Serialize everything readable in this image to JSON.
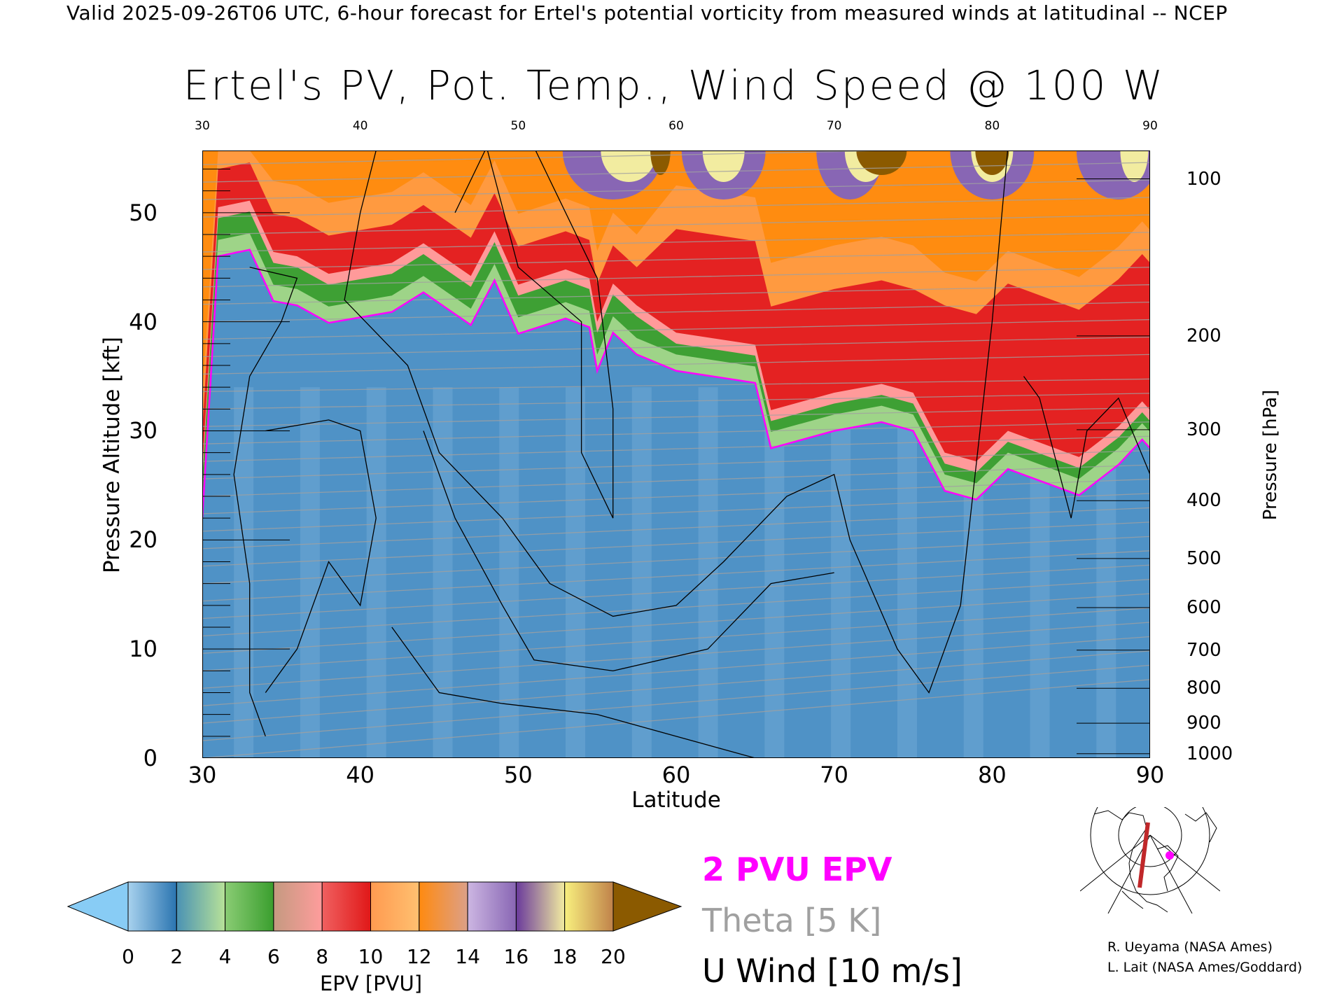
{
  "header": {
    "top_title": "Valid 2025-09-26T06 UTC, 6-hour forecast for Ertel's potential vorticity from measured winds at latitudinal -- NCEP",
    "main_title": "Ertel's PV, Pot. Temp., Wind Speed @ 100 W"
  },
  "chart_data": {
    "type": "heatmap",
    "title": "Ertel's PV, Pot. Temp., Wind Speed @ 100 W",
    "xlabel": "Latitude",
    "ylabel": "Pressure Altitude [kft]",
    "y2label": "Pressure [hPa]",
    "xlim": [
      30,
      90
    ],
    "ylim": [
      0,
      55.7
    ],
    "x_ticks": [
      "30",
      "40",
      "50",
      "60",
      "70",
      "80",
      "90"
    ],
    "x_tick_values": [
      30,
      40,
      50,
      60,
      70,
      80,
      90
    ],
    "y_ticks": [
      "0",
      "10",
      "20",
      "30",
      "40",
      "50"
    ],
    "y_tick_values": [
      0,
      10,
      20,
      30,
      40,
      50
    ],
    "pressure_ticks": [
      {
        "label": "100",
        "kft": 53.1
      },
      {
        "label": "200",
        "kft": 38.7
      },
      {
        "label": "300",
        "kft": 30.1
      },
      {
        "label": "400",
        "kft": 23.6
      },
      {
        "label": "500",
        "kft": 18.3
      },
      {
        "label": "600",
        "kft": 13.8
      },
      {
        "label": "700",
        "kft": 9.9
      },
      {
        "label": "800",
        "kft": 6.4
      },
      {
        "label": "900",
        "kft": 3.2
      },
      {
        "label": "1000",
        "kft": 0.4
      }
    ],
    "pv2_line": {
      "lat": [
        30,
        31,
        33,
        34.5,
        36,
        38,
        42,
        44,
        47,
        48.5,
        50,
        53,
        54.5,
        55,
        56,
        57.5,
        60,
        65,
        66,
        70,
        73,
        75,
        77,
        79,
        81,
        85.5,
        88,
        89.5,
        90
      ],
      "kft": [
        22,
        46,
        46.6,
        41.9,
        41.5,
        39.9,
        40.9,
        42.7,
        39.7,
        43.8,
        38.9,
        40.3,
        39.5,
        35.5,
        39,
        37,
        35.5,
        34.4,
        28.4,
        30,
        30.8,
        30,
        24.5,
        23.7,
        26.5,
        24.1,
        26.9,
        29.2,
        28.4
      ]
    },
    "colorbar": {
      "label": "EPV [PVU]",
      "ticks": [
        "0",
        "2",
        "4",
        "6",
        "8",
        "10",
        "12",
        "14",
        "16",
        "18",
        "20"
      ],
      "colors": [
        [
          "#a8d2ee",
          "#2a74b0"
        ],
        [
          "#4a92b4",
          "#b8e298"
        ],
        [
          "#8acc74",
          "#3a9e2e"
        ],
        [
          "#c49a80",
          "#ff9c9c"
        ],
        [
          "#f06060",
          "#e01818"
        ],
        [
          "#ff9a50",
          "#ffc070"
        ],
        [
          "#ff8a10",
          "#dca088"
        ],
        [
          "#ccb6e2",
          "#8866b4"
        ],
        [
          "#6a3a9c",
          "#f2eca0"
        ],
        [
          "#f8f07e",
          "#c0824a"
        ]
      ],
      "under_color": "#88ccf5",
      "over_color": "#8b5a00"
    }
  },
  "legend": {
    "pv": "2 PVU EPV",
    "theta": "Theta [5 K]",
    "wind": "U Wind [10 m/s]",
    "pv_color": "#ff00ff",
    "theta_color": "#a0a0a0"
  },
  "credits": [
    "R. Ueyama (NASA Ames)",
    "L. Lait (NASA Ames/Goddard)"
  ]
}
